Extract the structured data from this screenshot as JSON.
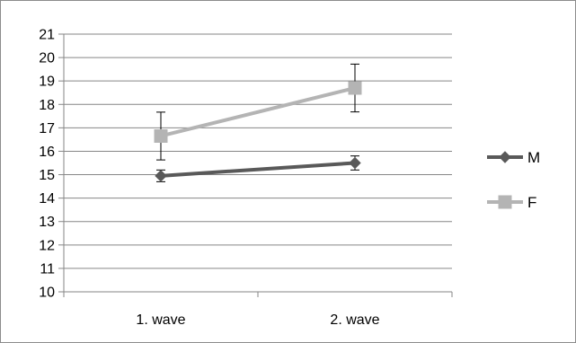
{
  "chart_data": {
    "type": "line",
    "title": "",
    "xlabel": "",
    "ylabel": "",
    "categories": [
      "1. wave",
      "2. wave"
    ],
    "ylim": [
      10,
      21
    ],
    "yticks": [
      10,
      11,
      12,
      13,
      14,
      15,
      16,
      17,
      18,
      19,
      20,
      21
    ],
    "grid": true,
    "legend_position": "right",
    "series": [
      {
        "name": "M",
        "values": [
          14.95,
          15.5
        ],
        "error": [
          0.25,
          0.3
        ],
        "marker": "diamond",
        "color": "#595959"
      },
      {
        "name": "F",
        "values": [
          16.65,
          18.7
        ],
        "error": [
          1.02,
          1.02
        ],
        "marker": "square",
        "color": "#b4b4b4"
      }
    ]
  }
}
